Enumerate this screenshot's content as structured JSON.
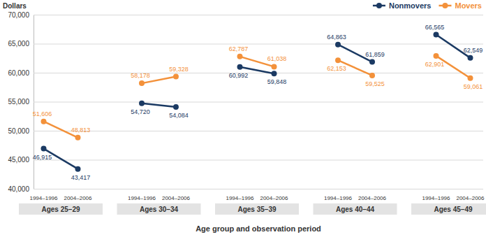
{
  "chart_data": {
    "type": "line",
    "y_label": "Dollars",
    "x_label": "Age group and observation period",
    "groups": [
      "Ages 25–29",
      "Ages 30–34",
      "Ages 35–39",
      "Ages 40–44",
      "Ages 45–49"
    ],
    "categories": [
      "1994–1996",
      "2004–2006",
      "1994–1996",
      "2004–2006",
      "1994–1996",
      "2004–2006",
      "1994–1996",
      "2004–2006",
      "1994–1996",
      "2004–2006"
    ],
    "series": [
      {
        "name": "Nonmovers",
        "color": "#1b3a63",
        "values": [
          46915,
          43417,
          54720,
          54084,
          60992,
          59848,
          64863,
          61859,
          66565,
          62549
        ],
        "value_labels": [
          "46,915",
          "43,417",
          "54,720",
          "54,084",
          "60,992",
          "59,848",
          "64,863",
          "61,859",
          "66,565",
          "62,549"
        ]
      },
      {
        "name": "Movers",
        "color": "#f3913a",
        "values": [
          51606,
          48813,
          58178,
          59328,
          62787,
          61038,
          62153,
          59525,
          62901,
          59061
        ],
        "value_labels": [
          "51,606",
          "48,813",
          "58,178",
          "59,328",
          "62,787",
          "61,038",
          "62,153",
          "59,525",
          "62,901",
          "59,061"
        ]
      }
    ],
    "ylim": [
      40000,
      70000
    ],
    "yticks": [
      {
        "value": 40000,
        "label": "40,000"
      },
      {
        "value": 45000,
        "label": "45,000"
      },
      {
        "value": 50000,
        "label": "50,000"
      },
      {
        "value": 55000,
        "label": "55,000"
      },
      {
        "value": 60000,
        "label": "60,000"
      },
      {
        "value": 65000,
        "label": "65,000"
      },
      {
        "value": 70000,
        "label": "70,000"
      }
    ],
    "grid": true,
    "legend": "top-right",
    "data_labels": true,
    "marker": "circle"
  }
}
